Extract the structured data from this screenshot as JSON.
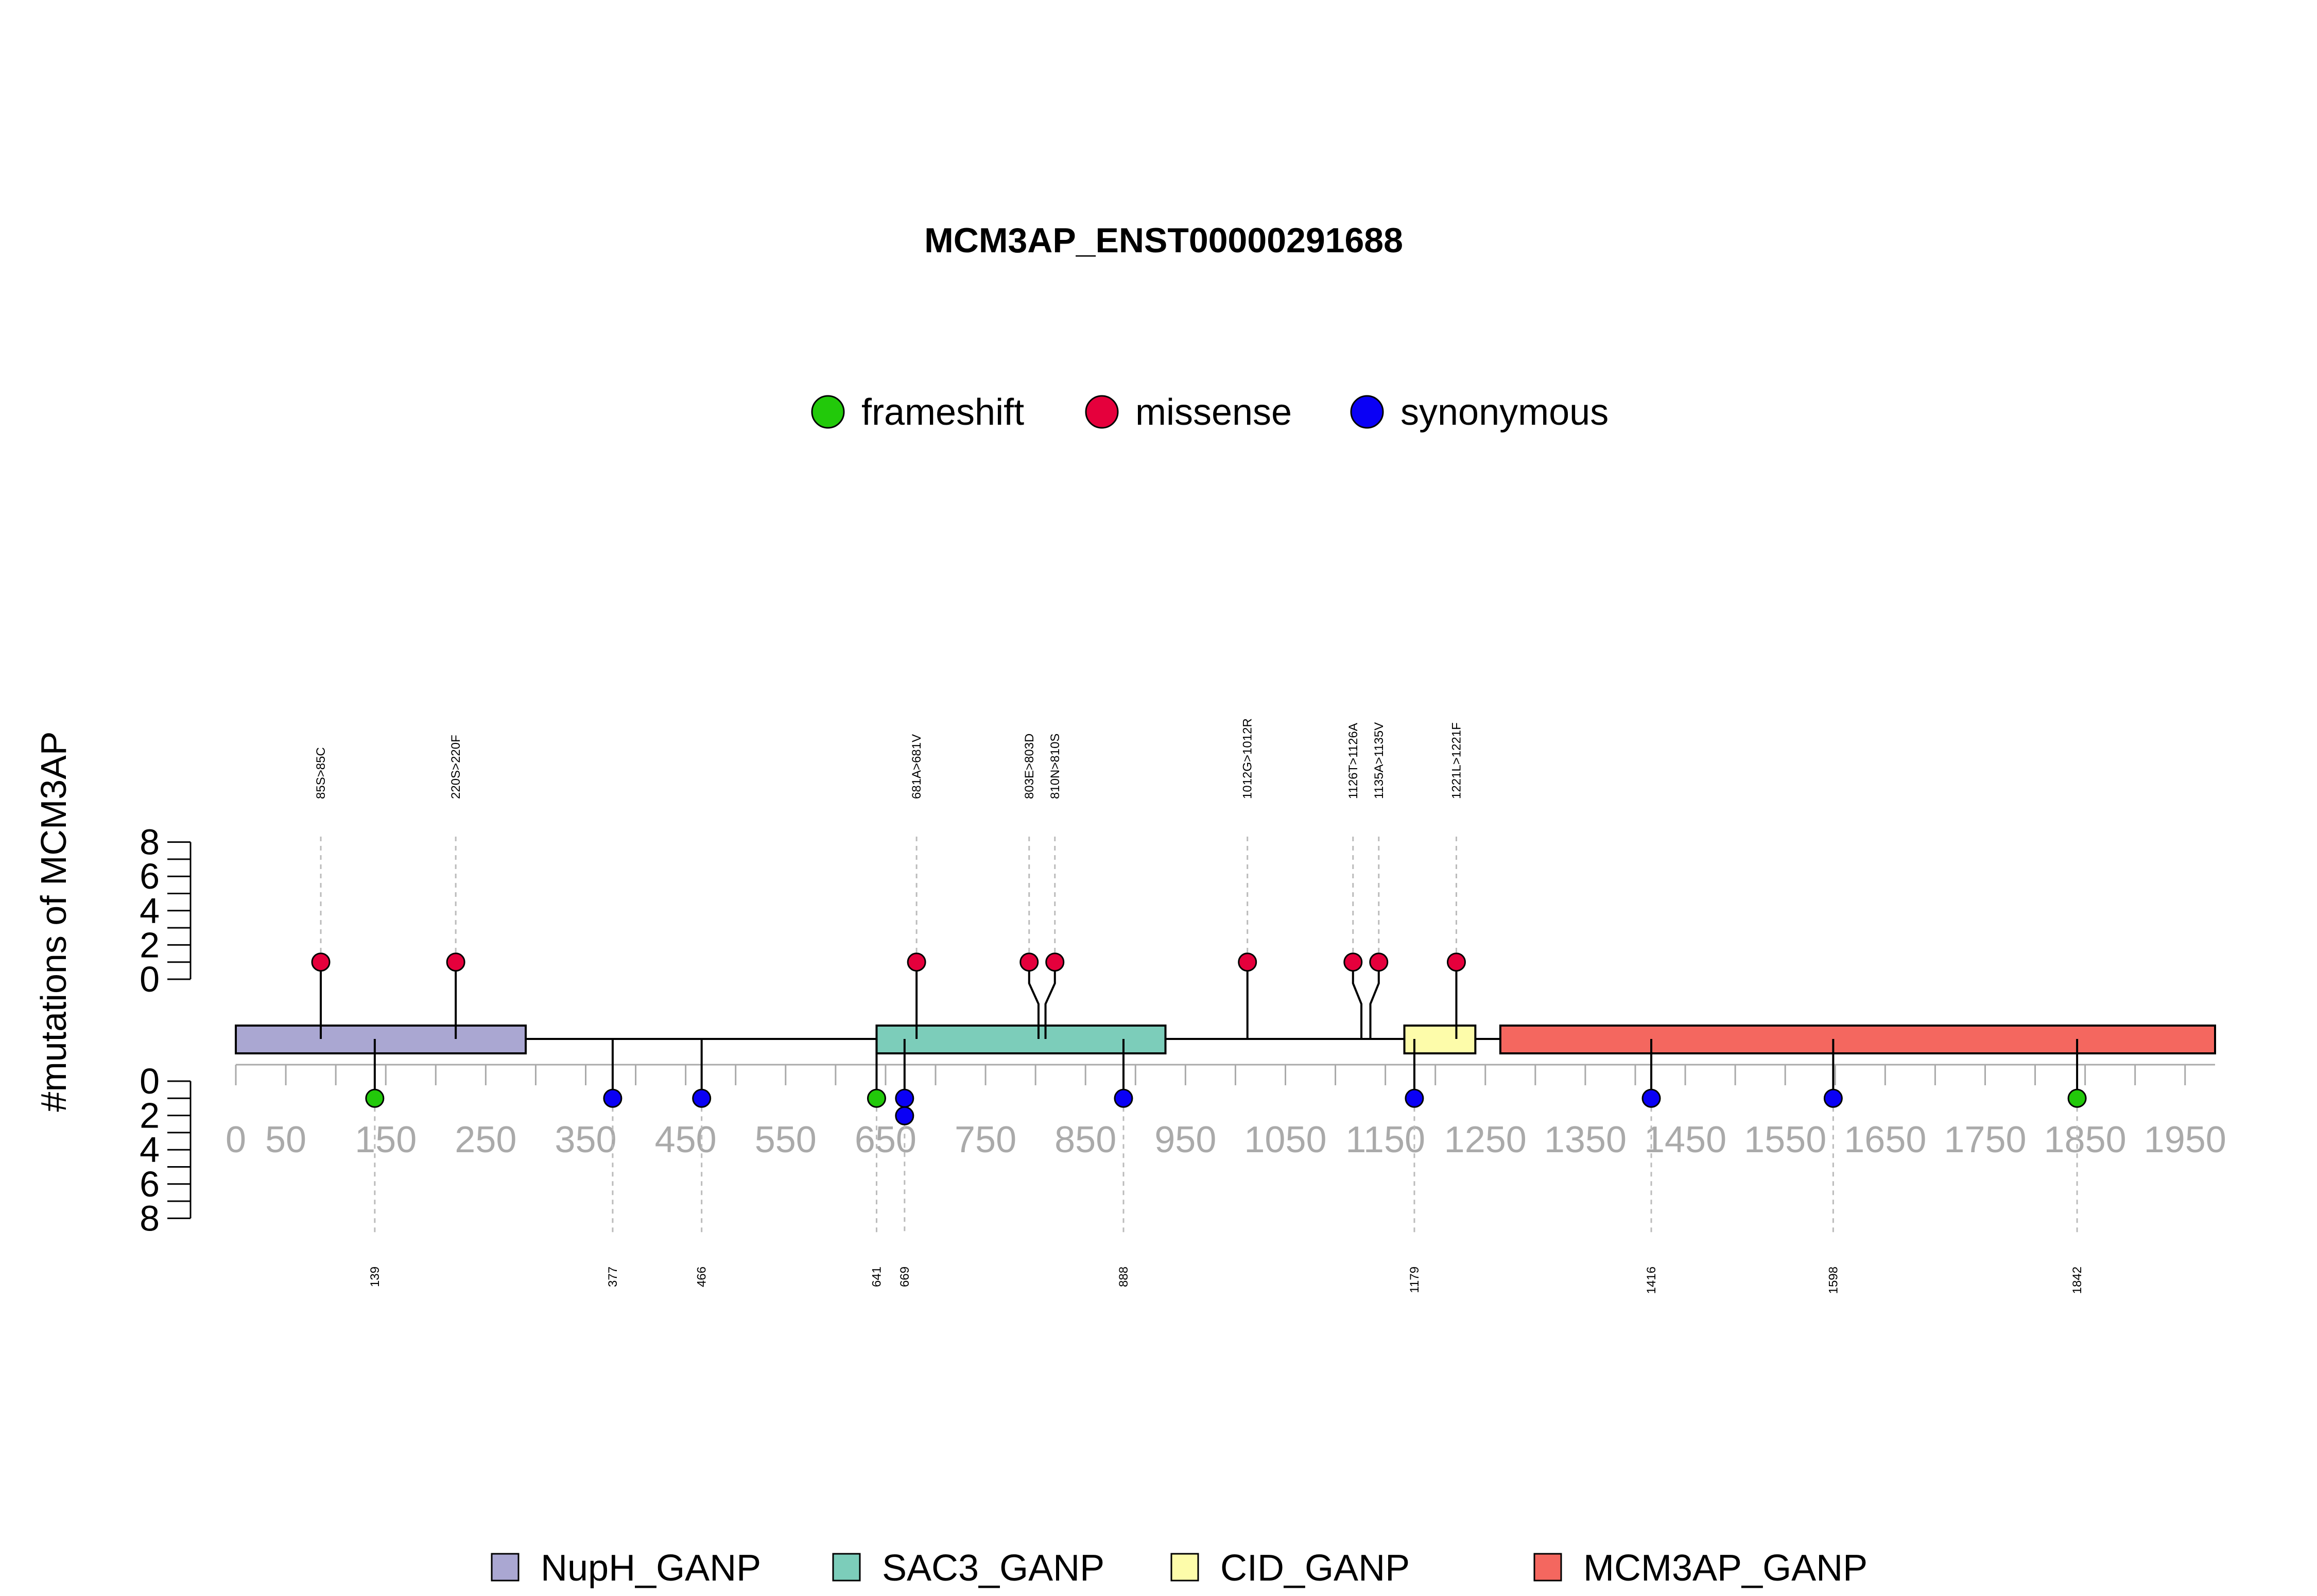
{
  "chart_data": {
    "type": "lollipop",
    "title": "MCM3AP_ENST00000291688",
    "ylabel": "#mutations of MCM3AP",
    "ylim": [
      0,
      8
    ],
    "yticks": [
      0,
      2,
      4,
      6,
      8
    ],
    "xlim": [
      0,
      1980
    ],
    "xtick_labels": [
      0,
      50,
      150,
      250,
      350,
      450,
      550,
      650,
      750,
      850,
      950,
      1050,
      1150,
      1250,
      1350,
      1450,
      1550,
      1650,
      1750,
      1850,
      1950
    ],
    "legend": [
      {
        "name": "frameshift",
        "color": "#22c90a"
      },
      {
        "name": "missense",
        "color": "#e5003c"
      },
      {
        "name": "synonymous",
        "color": "#0a00f5"
      }
    ],
    "domains": [
      {
        "name": "NupH_GANP",
        "start": 0,
        "end": 290,
        "color": "#aaa7d2"
      },
      {
        "name": "SAC3_GANP",
        "start": 641,
        "end": 930,
        "color": "#7ccdba"
      },
      {
        "name": "CID_GANP",
        "start": 1169,
        "end": 1240,
        "color": "#fdfcaa"
      },
      {
        "name": "MCM3AP_GANP",
        "start": 1265,
        "end": 1980,
        "color": "#f4675f"
      }
    ],
    "above_mutations": [
      {
        "pos": 85,
        "label": "85S>85C",
        "count": 1,
        "type": "missense"
      },
      {
        "pos": 220,
        "label": "220S>220F",
        "count": 1,
        "type": "missense"
      },
      {
        "pos": 681,
        "label": "681A>681V",
        "count": 1,
        "type": "missense"
      },
      {
        "pos": 803,
        "label": "803E>803D",
        "count": 1,
        "type": "missense"
      },
      {
        "pos": 810,
        "label": "810N>810S",
        "count": 1,
        "type": "missense"
      },
      {
        "pos": 1012,
        "label": "1012G>1012R",
        "count": 1,
        "type": "missense"
      },
      {
        "pos": 1126,
        "label": "1126T>1126A",
        "count": 1,
        "type": "missense"
      },
      {
        "pos": 1135,
        "label": "1135A>1135V",
        "count": 1,
        "type": "missense"
      },
      {
        "pos": 1221,
        "label": "1221L>1221F",
        "count": 1,
        "type": "missense"
      }
    ],
    "below_mutations": [
      {
        "pos": 139,
        "label": "139",
        "types": [
          "frameshift"
        ]
      },
      {
        "pos": 377,
        "label": "377",
        "types": [
          "synonymous"
        ]
      },
      {
        "pos": 466,
        "label": "466",
        "types": [
          "synonymous"
        ]
      },
      {
        "pos": 641,
        "label": "641",
        "types": [
          "frameshift"
        ]
      },
      {
        "pos": 669,
        "label": "669",
        "types": [
          "synonymous",
          "synonymous"
        ]
      },
      {
        "pos": 888,
        "label": "888",
        "types": [
          "synonymous"
        ]
      },
      {
        "pos": 1179,
        "label": "1179",
        "types": [
          "synonymous"
        ]
      },
      {
        "pos": 1416,
        "label": "1416",
        "types": [
          "synonymous"
        ]
      },
      {
        "pos": 1598,
        "label": "1598",
        "types": [
          "synonymous"
        ]
      },
      {
        "pos": 1842,
        "label": "1842",
        "types": [
          "frameshift"
        ]
      }
    ]
  }
}
